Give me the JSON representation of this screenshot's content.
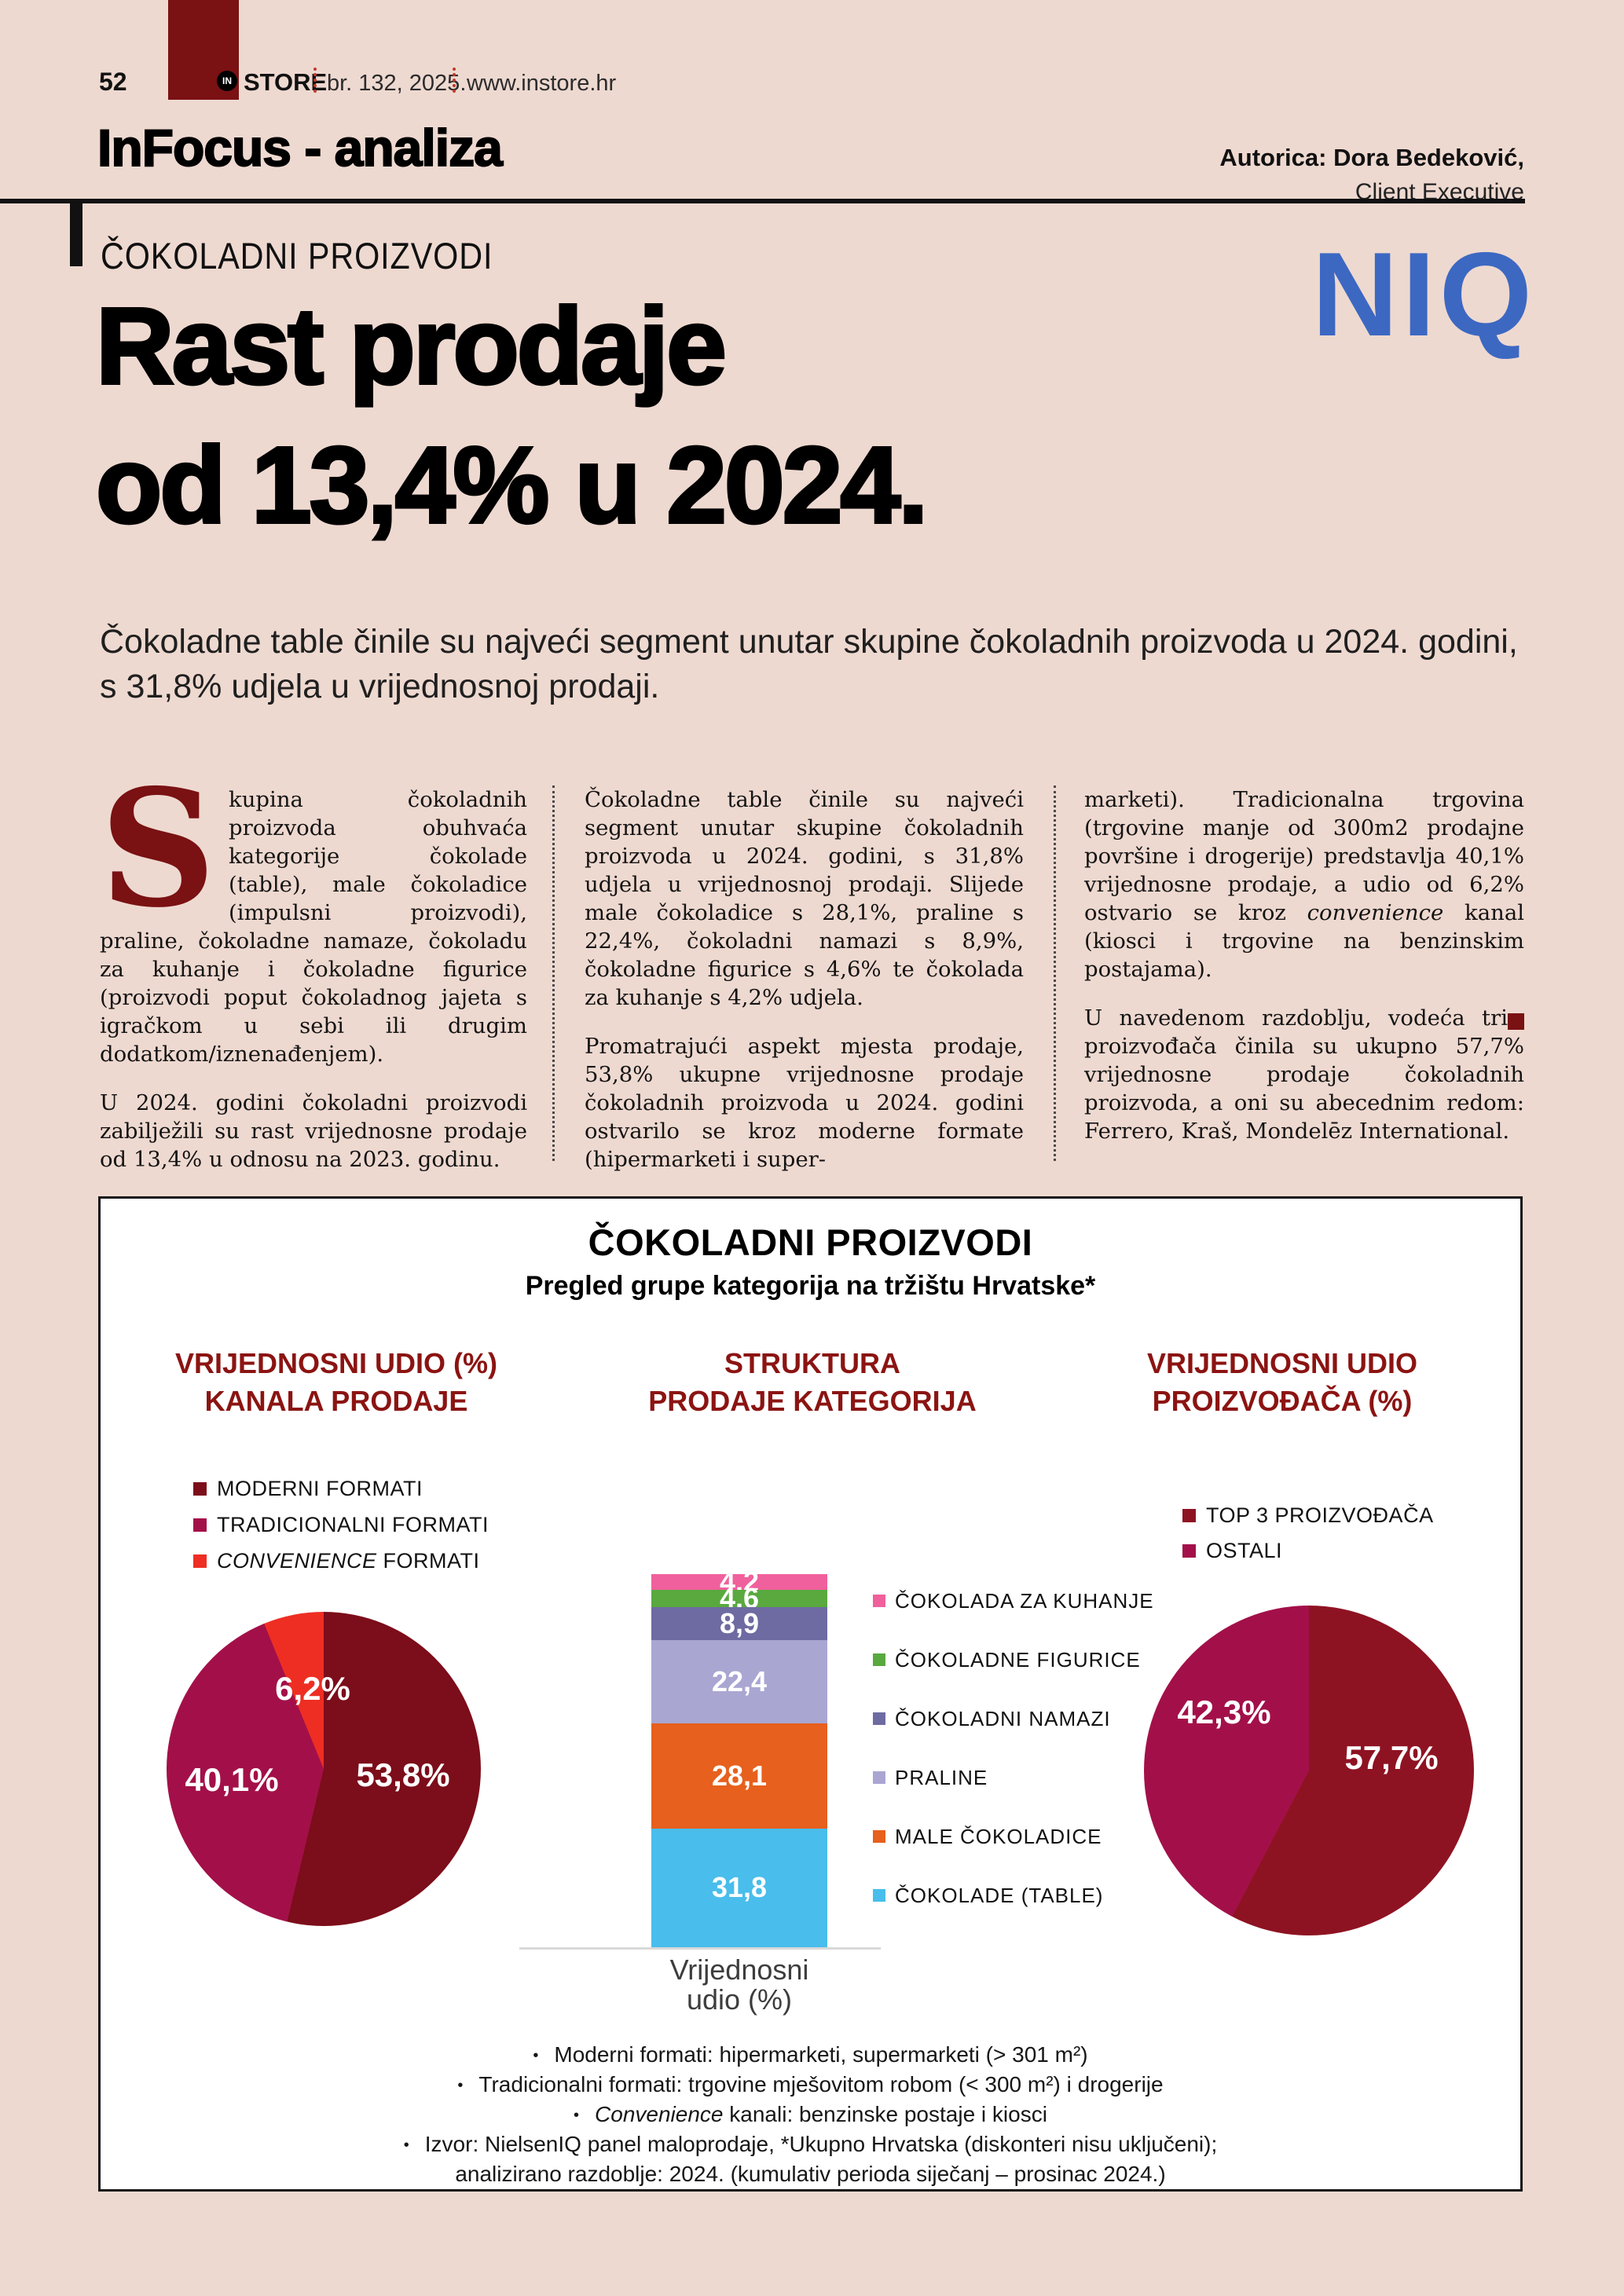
{
  "colors": {
    "page_background": "#eed9d0",
    "brand_red": "#7a1113",
    "panel_header_maroon": "#8b1412",
    "niq_blue": "#3c68c2",
    "separator_red": "#c23a2c"
  },
  "masthead": {
    "page_number": "52",
    "logo_in": "IN",
    "logo_store": "STORE",
    "issue": "br. 132, 2025.",
    "website": "www.instore.hr",
    "section": "InFocus - analiza",
    "author_bold": "Autorica: Dora Bedeković,",
    "author_role": "Client Executive"
  },
  "article": {
    "kicker": "ČOKOLADNI PROIZVODI",
    "brand_logo": "NIQ",
    "title_line1": "Rast prodaje",
    "title_line2": "od 13,4% u 2024.",
    "lead_line1": "Čokoladne table činile su najveći segment unutar skupine čokoladnih proizvoda u 2024. godini,",
    "lead_line2": "s 31,8% udjela u vrijednosnoj prodaji.",
    "col1": {
      "dropcap": "S",
      "para1": "kupina čokoladnih proizvoda obuhvaća kategorije čokolade (table), male čokoladice (impulsni proizvodi), praline, čokoladne namaze, čokoladu za kuhanje i čokoladne figurice (proizvodi poput čokoladnog jajeta s igračkom u sebi ili drugim dodatkom/iznenađenjem).",
      "para2": "U 2024. godini čokoladni proizvodi zabilježili su rast vrijednosne prodaje od 13,4% u odnosu na 2023. godinu."
    },
    "col2": {
      "para1": "Čokoladne table činile su najveći segment unutar skupine čokoladnih proizvoda u 2024. godini, s 31,8% udjela u vrijednosnoj prodaji. Slijede male čokoladice s 28,1%, praline s 22,4%, čokoladni namazi s 8,9%, čokoladne figurice s 4,6% te čokolada za kuhanje s 4,2% udjela.",
      "para2": "Promatrajući aspekt mjesta prodaje, 53,8% ukupne vrijednosne prodaje čokoladnih proizvoda u 2024. godini ostvarilo se kroz moderne formate (hipermarketi i super-"
    },
    "col3": {
      "para1_a": "marketi). Tradicionalna trgovina (trgovine manje od 300m2 prodajne površine i drogerije) predstavlja 40,1% vrijednosne prodaje, a udio od 6,2% ostvario se kroz ",
      "para1_italic": "convenience",
      "para1_b": " kanal (kiosci i trgovine na benzinskim postajama).",
      "para2": "U navedenom razdoblju, vodeća tri proizvođača činila su ukupno 57,7% vrijednosne prodaje čokoladnih proizvoda, a oni su abecednim redom: Ferrero, Kraš, Mondelēz International."
    }
  },
  "panel": {
    "title": "ČOKOLADNI PROIZVODI",
    "subtitle": "Pregled grupe kategorija na tržištu Hrvatske*",
    "left_header_line1": "VRIJEDNOSNI UDIO (%)",
    "left_header_line2": "KANALA PRODAJE",
    "middle_header_line1": "STRUKTURA",
    "middle_header_line2": "PRODAJE KATEGORIJA",
    "right_header_line1": "VRIJEDNOSNI UDIO",
    "right_header_line2": "PROIZVOĐAČA (%)",
    "left_legend": [
      {
        "color": "#7c0d1a",
        "label": "MODERNI FORMATI"
      },
      {
        "color": "#a31049",
        "label": "TRADICIONALNI FORMATI"
      },
      {
        "color": "#ee2e23",
        "label_italic": "CONVENIENCE",
        "label": " FORMATI"
      }
    ],
    "right_legend": [
      {
        "color": "#8e1322",
        "label": "TOP 3 PROIZVOĐAČA"
      },
      {
        "color": "#a31049",
        "label": "OSTALI"
      }
    ],
    "axis_label_line1": "Vrijednosni",
    "axis_label_line2": "udio (%)",
    "footnotes": {
      "bullet": "•",
      "line1": "Moderni formati: hipermarketi, supermarketi (> 301 m²)",
      "line2": "Tradicionalni formati: trgovine mješovitom robom (< 300 m²) i drogerije",
      "line3_italic": "Convenience",
      "line3_rest": " kanali: benzinske postaje i kiosci",
      "line4": "Izvor: NielsenIQ panel maloprodaje, *Ukupno Hrvatska (diskonteri nisu uključeni);",
      "line5": "analizirano razdoblje: 2024. (kumulativ perioda siječanj – prosinac 2024.)"
    }
  },
  "chart_data": [
    {
      "type": "pie",
      "title": "VRIJEDNOSNI UDIO (%) KANALA PRODAJE",
      "labels": [
        "MODERNI FORMATI",
        "TRADICIONALNI FORMATI",
        "CONVENIENCE FORMATI"
      ],
      "values": [
        53.8,
        40.1,
        6.2
      ],
      "value_labels": [
        "53,8%",
        "40,1%",
        "6,2%"
      ],
      "colors": [
        "#7c0d1a",
        "#a31049",
        "#ee2e23"
      ],
      "start_angle_deg": 0,
      "direction": "clockwise",
      "legend_position": "above"
    },
    {
      "type": "bar",
      "stacked": true,
      "title": "STRUKTURA PRODAJE KATEGORIJA",
      "xlabel": "Vrijednosni udio (%)",
      "categories": [
        "ČOKOLADE (TABLE)",
        "MALE ČOKOLADICE",
        "PRALINE",
        "ČOKOLADNI NAMAZI",
        "ČOKOLADNE FIGURICE",
        "ČOKOLADA ZA KUHANJE"
      ],
      "values": [
        31.8,
        28.1,
        22.4,
        8.9,
        4.6,
        4.2
      ],
      "value_labels": [
        "31,8",
        "28,1",
        "22,4",
        "8,9",
        "4,6",
        "4,2"
      ],
      "colors": [
        "#49bdeb",
        "#e7601d",
        "#aaa6d2",
        "#6e6ba2",
        "#59a93f",
        "#f0609c"
      ],
      "order": "bottom-to-top",
      "ylim": [
        0,
        100
      ],
      "legend_position": "right"
    },
    {
      "type": "pie",
      "title": "VRIJEDNOSNI UDIO PROIZVOĐAČA (%)",
      "labels": [
        "TOP 3 PROIZVOĐAČA",
        "OSTALI"
      ],
      "values": [
        57.7,
        42.3
      ],
      "value_labels": [
        "57,7%",
        "42,3%"
      ],
      "colors": [
        "#8e1322",
        "#a31049"
      ],
      "start_angle_deg": 0,
      "direction": "clockwise",
      "legend_position": "above"
    }
  ]
}
